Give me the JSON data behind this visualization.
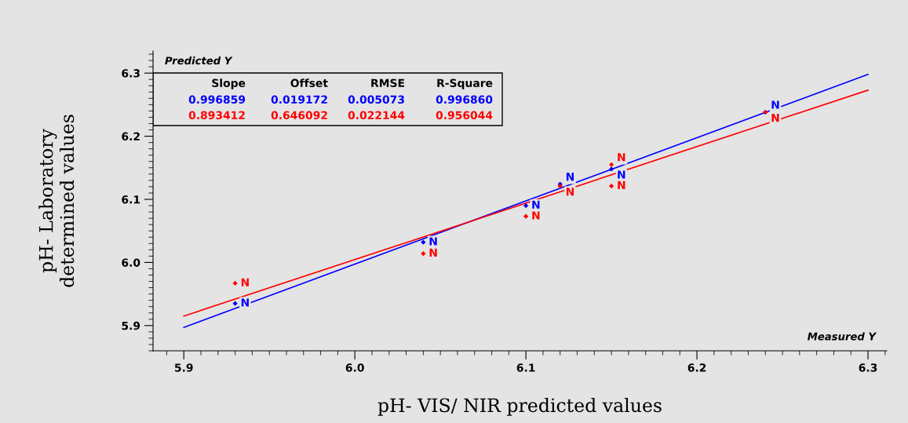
{
  "chart_data": {
    "type": "scatter",
    "xlabel": "pH- VIS/ NIR predicted values",
    "ylabel": "pH- Laboratory\ndetermined values",
    "xlim": [
      5.882,
      6.311
    ],
    "ylim": [
      5.86,
      6.335
    ],
    "xticks": [
      {
        "value": 5.9,
        "label": "5.9"
      },
      {
        "value": 6.0,
        "label": "6.0"
      },
      {
        "value": 6.1,
        "label": "6.1"
      },
      {
        "value": 6.2,
        "label": "6.2"
      },
      {
        "value": 6.3,
        "label": "6.3"
      }
    ],
    "yticks": [
      {
        "value": 5.9,
        "label": "5.9"
      },
      {
        "value": 6.0,
        "label": "6.0"
      },
      {
        "value": 6.1,
        "label": "6.1"
      },
      {
        "value": 6.2,
        "label": "6.2"
      },
      {
        "value": 6.3,
        "label": "6.3"
      }
    ],
    "grid": false,
    "series": [
      {
        "marker": "diamond",
        "color": "#0000ff",
        "x": [
          5.93,
          6.04,
          6.1,
          6.12,
          6.15,
          6.24
        ],
        "values": [
          5.935,
          6.032,
          6.09,
          6.124,
          6.148,
          6.238
        ],
        "value_labels": [
          "N",
          "N",
          "N",
          "N",
          "N",
          "N"
        ]
      },
      {
        "marker": "diamond",
        "color": "#ff0000",
        "x": [
          5.93,
          6.04,
          6.1,
          6.12,
          6.15,
          6.15,
          6.24
        ],
        "values": [
          5.967,
          6.014,
          6.073,
          6.121,
          6.155,
          6.121,
          6.238
        ],
        "value_labels": [
          "N",
          "N",
          "N",
          "N",
          "N",
          "N",
          "N"
        ]
      },
      {
        "type": "line",
        "color": "#0000ff",
        "x": [
          5.9,
          6.3
        ],
        "values": [
          5.897,
          6.298
        ]
      },
      {
        "type": "line",
        "color": "#ff0000",
        "x": [
          5.9,
          6.3
        ],
        "values": [
          5.915,
          6.273
        ]
      }
    ],
    "annotations": [
      "Predicted Y",
      "Measured Y",
      "Slope",
      "Offset",
      "RMSE",
      "R-Square",
      "0.996859",
      "0.019172",
      "0.005073",
      "0.996860",
      "0.893412",
      "0.646092",
      "0.022144",
      "0.956044"
    ]
  }
}
